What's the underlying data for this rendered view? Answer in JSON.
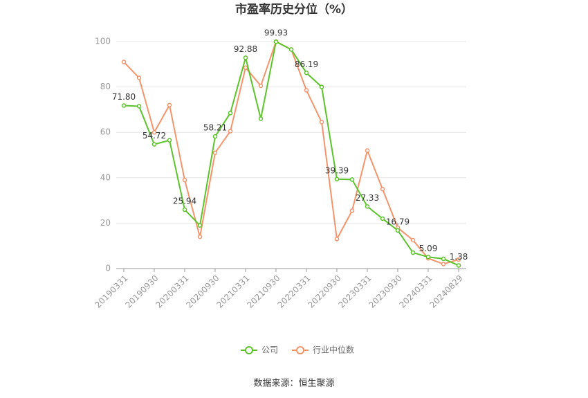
{
  "chart_data": {
    "type": "line",
    "title": "市盈率历史分位（%）",
    "categories": [
      "20190331",
      null,
      "20190930",
      null,
      "20200331",
      null,
      "20200930",
      null,
      "20210331",
      null,
      "20210930",
      null,
      "20220331",
      null,
      "20220930",
      null,
      "20230331",
      null,
      "20230930",
      null,
      "20240331",
      null,
      "20240829"
    ],
    "series": [
      {
        "name": "公司",
        "color": "#5ac42a",
        "values": [
          71.8,
          71.5,
          54.72,
          56.5,
          25.94,
          19,
          58.21,
          68.5,
          92.88,
          66,
          99.93,
          96.5,
          86.19,
          80,
          39.39,
          39.2,
          27.33,
          22,
          16.79,
          7,
          5.09,
          4.3,
          1.38
        ],
        "value_labels": [
          "71.80",
          null,
          "54.72",
          null,
          "25.94",
          null,
          "58.21",
          null,
          "92.88",
          null,
          "99.93",
          null,
          "86.19",
          null,
          "39.39",
          null,
          "27.33",
          null,
          "16.79",
          null,
          "5.09",
          null,
          "1.38"
        ]
      },
      {
        "name": "行业中位数",
        "color": "#f5946a",
        "values": [
          91,
          84,
          60,
          72,
          39,
          14,
          51,
          60.5,
          88.5,
          80.5,
          100,
          96.5,
          78.5,
          64.5,
          13,
          25.5,
          52,
          35,
          18,
          12.5,
          4.5,
          2,
          4
        ]
      }
    ],
    "ylim": [
      0,
      100
    ],
    "yticks": [
      0,
      20,
      40,
      60,
      80,
      100
    ],
    "grid": true,
    "legend": "bottom",
    "source": "数据来源：恒生聚源"
  }
}
